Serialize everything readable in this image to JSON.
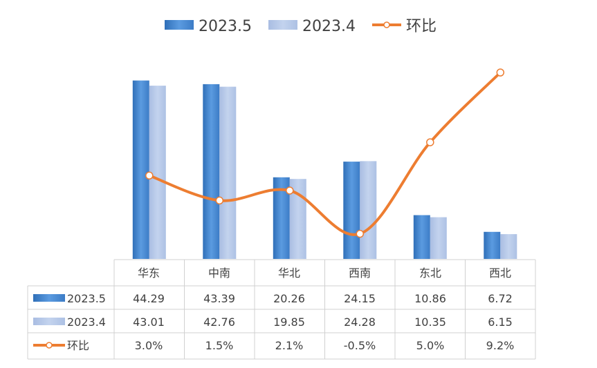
{
  "chart_data": {
    "type": "bar",
    "categories": [
      "华东",
      "中南",
      "华北",
      "西南",
      "东北",
      "西北"
    ],
    "series": [
      {
        "name": "2023.5",
        "type": "bar",
        "values": [
          44.29,
          43.39,
          20.26,
          24.15,
          10.86,
          6.72
        ],
        "display": [
          "44.29",
          "43.39",
          "20.26",
          "24.15",
          "10.86",
          "6.72"
        ]
      },
      {
        "name": "2023.4",
        "type": "bar",
        "values": [
          43.01,
          42.76,
          19.85,
          24.28,
          10.35,
          6.15
        ],
        "display": [
          "43.01",
          "42.76",
          "19.85",
          "24.28",
          "10.35",
          "6.15"
        ]
      },
      {
        "name": "环比",
        "type": "line",
        "values": [
          3.0,
          1.5,
          2.1,
          -0.5,
          5.0,
          9.2
        ],
        "display": [
          "3.0%",
          "1.5%",
          "2.1%",
          "-0.5%",
          "5.0%",
          "9.2%"
        ]
      }
    ],
    "ylim": [
      0,
      48
    ],
    "y2lim": [
      -0.6,
      9.2
    ],
    "legend_position": "top",
    "data_table": true,
    "grid": false
  },
  "colors": {
    "series_2023_5": "#4a8fd6",
    "series_2023_4": "#b4c7e7",
    "series_ratio": "#ed7d31",
    "text": "#404040",
    "table_border": "#d0d0d0"
  }
}
